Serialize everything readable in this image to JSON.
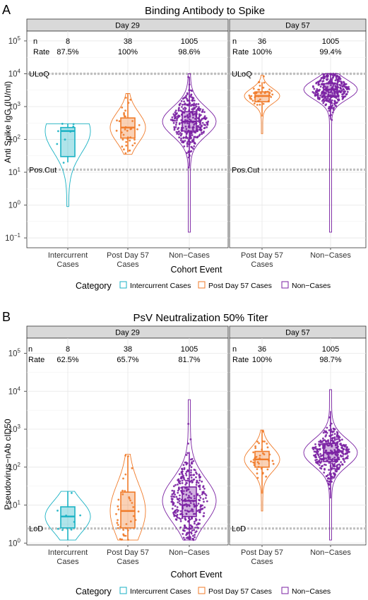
{
  "colors": {
    "intercurrent": "#1ab2c4",
    "postday57": "#f07b2a",
    "noncases": "#7b22a3",
    "gridline": "#e6e6e6",
    "strip": "#d9d9d9",
    "reference_line": "#c0c0c0"
  },
  "legend": {
    "title": "Category",
    "items": [
      "Intercurrent Cases",
      "Post Day 57 Cases",
      "Non−Cases"
    ]
  },
  "chart_data": [
    {
      "panel_letter": "A",
      "type": "violin-box",
      "title": "Binding Antibody to Spike",
      "ylabel": "Anti Spike IgG (IU/ml)",
      "xlabel": "Cohort Event",
      "yscale": "log10",
      "ylim_log10": [
        -1.3,
        5.3
      ],
      "y_tick_exponents": [
        -1,
        0,
        1,
        2,
        3,
        4,
        5
      ],
      "reference_lines": [
        {
          "label": "ULoQ",
          "value": 10000
        },
        {
          "label": "Pos.Cut",
          "value": 12
        }
      ],
      "facets": [
        {
          "strip": "Day 29",
          "stats_labels": [
            "n",
            "Rate"
          ],
          "groups": [
            {
              "category": "Intercurrent Cases",
              "xlabel": [
                "Intercurrent",
                "Cases"
              ],
              "n": "8",
              "rate": "87.5%",
              "median": 180,
              "q1": 30,
              "q3": 230,
              "whisker_low": 20,
              "whisker_high": 300,
              "min": 0.9,
              "max": 300
            },
            {
              "category": "Post Day 57 Cases",
              "xlabel": [
                "Post Day 57",
                "Cases"
              ],
              "n": "38",
              "rate": "100%",
              "median": 230,
              "q1": 110,
              "q3": 450,
              "whisker_low": 40,
              "whisker_high": 2500,
              "min": 35,
              "max": 2500
            },
            {
              "category": "Non-Cases",
              "xlabel": [
                "Non−Cases"
              ],
              "n": "1005",
              "rate": "98.6%",
              "median": 350,
              "q1": 180,
              "q3": 700,
              "whisker_low": 15,
              "whisker_high": 8000,
              "min": 0.15,
              "max": 10000
            }
          ]
        },
        {
          "strip": "Day 57",
          "stats_labels": [
            "n",
            "Rate"
          ],
          "groups": [
            {
              "category": "Post Day 57 Cases",
              "xlabel": [
                "Post Day 57",
                "Cases"
              ],
              "n": "36",
              "rate": "100%",
              "median": 2100,
              "q1": 1400,
              "q3": 2800,
              "whisker_low": 500,
              "whisker_high": 5500,
              "min": 150,
              "max": 9000
            },
            {
              "category": "Non-Cases",
              "xlabel": [
                "Non−Cases"
              ],
              "n": "1005",
              "rate": "99.4%",
              "median": 3300,
              "q1": 2000,
              "q3": 5000,
              "whisker_low": 400,
              "whisker_high": 10000,
              "min": 0.15,
              "max": 10000
            }
          ]
        }
      ]
    },
    {
      "panel_letter": "B",
      "type": "violin-box",
      "title": "PsV Neutralization 50% Titer",
      "ylabel": "Pseudovirus−nAb cID50",
      "xlabel": "Cohort Event",
      "yscale": "log10",
      "ylim_log10": [
        -0.05,
        5.4
      ],
      "y_tick_exponents": [
        0,
        1,
        2,
        3,
        4,
        5
      ],
      "reference_lines": [
        {
          "label": "LoD",
          "value": 2.42
        }
      ],
      "facets": [
        {
          "strip": "Day 29",
          "stats_labels": [
            "n",
            "Rate"
          ],
          "groups": [
            {
              "category": "Intercurrent Cases",
              "xlabel": [
                "Intercurrent",
                "Cases"
              ],
              "n": "8",
              "rate": "62.5%",
              "median": 5,
              "q1": 2.5,
              "q3": 9,
              "whisker_low": 1.2,
              "whisker_high": 23,
              "min": 1.2,
              "max": 23
            },
            {
              "category": "Post Day 57 Cases",
              "xlabel": [
                "Post Day 57",
                "Cases"
              ],
              "n": "38",
              "rate": "65.7%",
              "median": 7,
              "q1": 2.5,
              "q3": 22,
              "whisker_low": 1.2,
              "whisker_high": 200,
              "min": 1.2,
              "max": 220
            },
            {
              "category": "Non-Cases",
              "xlabel": [
                "Non−Cases"
              ],
              "n": "1005",
              "rate": "81.7%",
              "median": 13,
              "q1": 5,
              "q3": 30,
              "whisker_low": 1.2,
              "whisker_high": 250,
              "min": 1.2,
              "max": 6000
            }
          ]
        },
        {
          "strip": "Day 57",
          "stats_labels": [
            "n",
            "Rate"
          ],
          "groups": [
            {
              "category": "Post Day 57 Cases",
              "xlabel": [
                "Post Day 57",
                "Cases"
              ],
              "n": "36",
              "rate": "100%",
              "median": 160,
              "q1": 100,
              "q3": 260,
              "whisker_low": 20,
              "whisker_high": 950,
              "min": 7,
              "max": 950
            },
            {
              "category": "Non-Cases",
              "xlabel": [
                "Non−Cases"
              ],
              "n": "1005",
              "rate": "98.7%",
              "median": 240,
              "q1": 140,
              "q3": 420,
              "whisker_low": 15,
              "whisker_high": 3000,
              "min": 1.2,
              "max": 11000
            }
          ]
        }
      ]
    }
  ]
}
